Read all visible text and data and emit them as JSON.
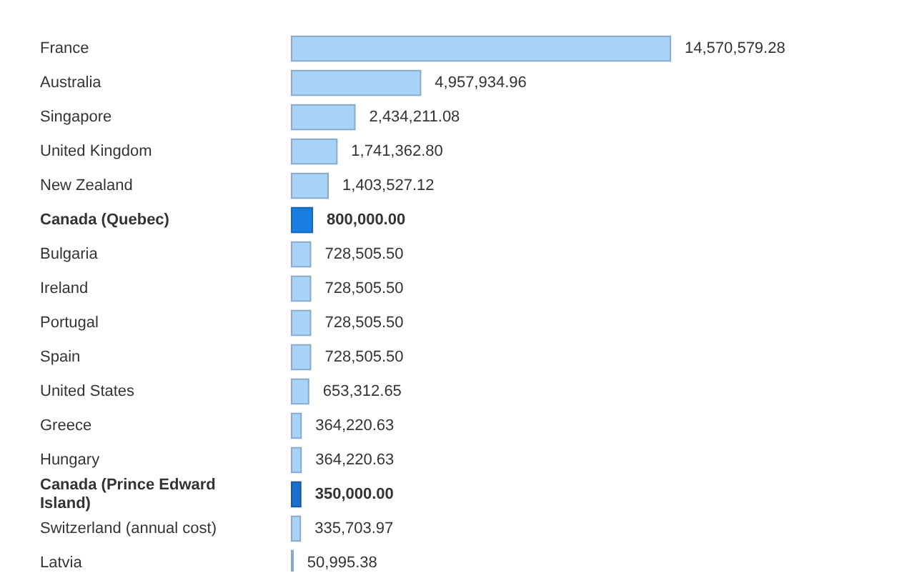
{
  "chart_data": {
    "type": "bar",
    "orientation": "horizontal",
    "value_labels": [
      "14,570,579.28",
      "4,957,934.96",
      "2,434,211.08",
      "1,741,362.80",
      "1,403,527.12",
      "800,000.00",
      "728,505.50",
      "728,505.50",
      "728,505.50",
      "728,505.50",
      "653,312.65",
      "364,220.63",
      "364,220.63",
      "350,000.00",
      "335,703.97",
      "50,995.38"
    ],
    "categories": [
      "France",
      "Australia",
      "Singapore",
      "United Kingdom",
      "New Zealand",
      "Canada (Quebec)",
      "Bulgaria",
      "Ireland",
      "Portugal",
      "Spain",
      "United States",
      "Greece",
      "Hungary",
      "Canada (Prince Edward Island)",
      "Switzerland (annual cost)",
      "Latvia"
    ],
    "values": [
      14570579.28,
      4957934.96,
      2434211.08,
      1741362.8,
      1403527.12,
      800000.0,
      728505.5,
      728505.5,
      728505.5,
      728505.5,
      653312.65,
      364220.63,
      364220.63,
      350000.0,
      335703.97,
      50995.38
    ],
    "color": "#a9d2f8",
    "colors": [
      "#a9d2f8",
      "#a9d2f8",
      "#a9d2f8",
      "#a9d2f8",
      "#a9d2f8",
      "#1a7ee0",
      "#a9d2f8",
      "#a9d2f8",
      "#a9d2f8",
      "#a9d2f8",
      "#a9d2f8",
      "#a9d2f8",
      "#a9d2f8",
      "#1a6fcc",
      "#a9d2f8",
      "#a9d2f8"
    ]
  }
}
